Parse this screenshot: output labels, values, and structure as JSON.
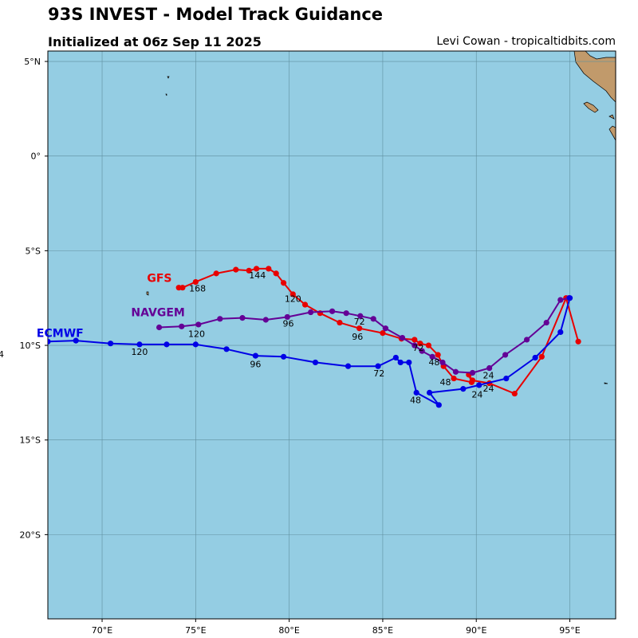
{
  "header": {
    "title": "93S INVEST - Model Track Guidance",
    "subtitle": "Initialized at 06z Sep 11 2025",
    "credit": "Levi Cowan - tropicaltidbits.com"
  },
  "map": {
    "extent": {
      "lon_min": 67.1,
      "lon_max": 97.45,
      "lat_min": -24.45,
      "lat_max": 5.55
    },
    "ocean_color": "#94cde3",
    "land_color": "#c19a6b",
    "grid_color": "#5f8f9f",
    "lon_ticks": [
      {
        "value": 70,
        "label": "70°E"
      },
      {
        "value": 75,
        "label": "75°E"
      },
      {
        "value": 80,
        "label": "80°E"
      },
      {
        "value": 85,
        "label": "85°E"
      },
      {
        "value": 90,
        "label": "90°E"
      },
      {
        "value": 95,
        "label": "95°E"
      }
    ],
    "lat_ticks": [
      {
        "value": 5,
        "label": "5°N"
      },
      {
        "value": 0,
        "label": "0°"
      },
      {
        "value": -5,
        "label": "5°S"
      },
      {
        "value": -10,
        "label": "10°S"
      },
      {
        "value": -15,
        "label": "15°S"
      },
      {
        "value": -20,
        "label": "20°S"
      }
    ]
  },
  "tracks": [
    {
      "name": "GFS",
      "color": "#e80000",
      "name_pos": [
        72.4,
        -6.65
      ],
      "points": [
        [
          95.45,
          -9.8
        ],
        [
          94.8,
          -7.5
        ],
        [
          93.5,
          -10.6
        ],
        [
          92.05,
          -12.55
        ],
        [
          90.7,
          -12.0
        ],
        [
          89.8,
          -11.85
        ],
        [
          89.6,
          -11.55
        ],
        [
          89.75,
          -11.95
        ],
        [
          88.8,
          -11.75
        ],
        [
          88.25,
          -11.1
        ],
        [
          87.95,
          -10.5
        ],
        [
          87.45,
          -10.0
        ],
        [
          87.0,
          -9.9
        ],
        [
          86.7,
          -9.7
        ],
        [
          86.0,
          -9.65
        ],
        [
          85.0,
          -9.35
        ],
        [
          83.75,
          -9.1
        ],
        [
          82.7,
          -8.8
        ],
        [
          81.65,
          -8.3
        ],
        [
          80.85,
          -7.85
        ],
        [
          80.2,
          -7.3
        ],
        [
          79.7,
          -6.7
        ],
        [
          79.3,
          -6.2
        ],
        [
          78.9,
          -5.95
        ],
        [
          78.25,
          -5.95
        ],
        [
          77.85,
          -6.05
        ],
        [
          77.15,
          -6.0
        ],
        [
          76.1,
          -6.2
        ],
        [
          75.0,
          -6.65
        ],
        [
          74.3,
          -6.95
        ],
        [
          74.1,
          -6.95
        ]
      ],
      "labels": [
        {
          "text": "24",
          "at": [
            90.65,
            -12.45
          ]
        },
        {
          "text": "48",
          "at": [
            88.35,
            -12.1
          ]
        },
        {
          "text": "72",
          "at": [
            83.75,
            -8.9
          ]
        },
        {
          "text": "96",
          "at": [
            83.65,
            -9.7
          ]
        },
        {
          "text": "120",
          "at": [
            80.2,
            -7.7
          ]
        },
        {
          "text": "144",
          "at": [
            78.3,
            -6.45
          ]
        },
        {
          "text": "168",
          "at": [
            75.1,
            -7.15
          ]
        }
      ]
    },
    {
      "name": "NAVGEM",
      "color": "#640096",
      "name_pos": [
        71.55,
        -8.45
      ],
      "points": [
        [
          94.95,
          -7.5
        ],
        [
          94.5,
          -7.6
        ],
        [
          93.75,
          -8.8
        ],
        [
          92.7,
          -9.7
        ],
        [
          91.55,
          -10.5
        ],
        [
          90.7,
          -11.2
        ],
        [
          89.8,
          -11.45
        ],
        [
          88.9,
          -11.4
        ],
        [
          88.2,
          -10.9
        ],
        [
          87.65,
          -10.6
        ],
        [
          87.1,
          -10.3
        ],
        [
          86.7,
          -10.0
        ],
        [
          86.05,
          -9.6
        ],
        [
          85.15,
          -9.1
        ],
        [
          84.5,
          -8.6
        ],
        [
          83.8,
          -8.45
        ],
        [
          83.05,
          -8.3
        ],
        [
          82.3,
          -8.2
        ],
        [
          81.15,
          -8.25
        ],
        [
          79.9,
          -8.5
        ],
        [
          78.75,
          -8.65
        ],
        [
          77.5,
          -8.55
        ],
        [
          76.3,
          -8.6
        ],
        [
          75.15,
          -8.9
        ],
        [
          74.25,
          -9.0
        ],
        [
          73.05,
          -9.05
        ]
      ],
      "labels": [
        {
          "text": "24",
          "at": [
            90.65,
            -11.75
          ]
        },
        {
          "text": "48",
          "at": [
            87.75,
            -11.05
          ]
        },
        {
          "text": "72",
          "at": [
            86.9,
            -10.3
          ]
        },
        {
          "text": "96",
          "at": [
            79.95,
            -9.0
          ]
        },
        {
          "text": "120",
          "at": [
            75.05,
            -9.55
          ]
        }
      ]
    },
    {
      "name": "ECMWF",
      "color": "#0000e6",
      "name_pos": [
        66.5,
        -9.55
      ],
      "points": [
        [
          95.0,
          -7.5
        ],
        [
          94.5,
          -9.3
        ],
        [
          93.15,
          -10.65
        ],
        [
          91.6,
          -11.75
        ],
        [
          90.15,
          -12.1
        ],
        [
          89.3,
          -12.3
        ],
        [
          87.5,
          -12.5
        ],
        [
          88.0,
          -13.15
        ],
        [
          86.8,
          -12.5
        ],
        [
          86.4,
          -10.9
        ],
        [
          85.95,
          -10.9
        ],
        [
          85.7,
          -10.65
        ],
        [
          84.75,
          -11.1
        ],
        [
          83.15,
          -11.1
        ],
        [
          81.4,
          -10.9
        ],
        [
          79.7,
          -10.6
        ],
        [
          78.2,
          -10.55
        ],
        [
          76.65,
          -10.2
        ],
        [
          75.0,
          -9.95
        ],
        [
          73.45,
          -9.95
        ],
        [
          72.0,
          -9.95
        ],
        [
          70.45,
          -9.9
        ],
        [
          68.6,
          -9.75
        ],
        [
          67.1,
          -9.8
        ]
      ],
      "labels": [
        {
          "text": "24",
          "at": [
            90.05,
            -12.75
          ]
        },
        {
          "text": "48",
          "at": [
            86.75,
            -13.05
          ]
        },
        {
          "text": "72",
          "at": [
            84.8,
            -11.65
          ]
        },
        {
          "text": "96",
          "at": [
            78.2,
            -11.15
          ]
        },
        {
          "text": "120",
          "at": [
            72.0,
            -10.5
          ]
        }
      ]
    }
  ],
  "ecmwf_side_label": "4"
}
